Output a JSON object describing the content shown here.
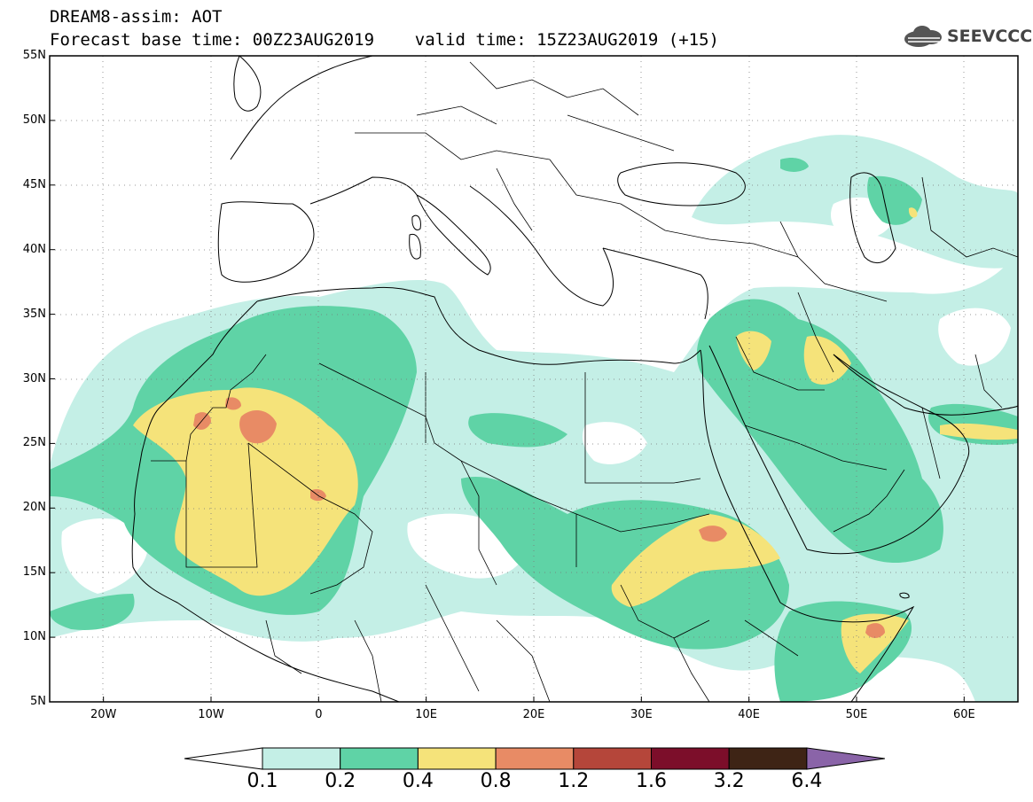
{
  "header": {
    "title_line1": "DREAM8-assim: AOT",
    "title_line2": "Forecast base time: 00Z23AUG2019    valid time: 15Z23AUG2019 (+15)"
  },
  "logo": {
    "text": "SEEVCCC",
    "icon": "cloud-logo-icon"
  },
  "map": {
    "lat_labels": [
      "55N",
      "50N",
      "45N",
      "40N",
      "35N",
      "30N",
      "25N",
      "20N",
      "15N",
      "10N",
      "5N"
    ],
    "lat_values": [
      55,
      50,
      45,
      40,
      35,
      30,
      25,
      20,
      15,
      10,
      5
    ],
    "lon_labels": [
      "20W",
      "10W",
      "0",
      "10E",
      "20E",
      "30E",
      "40E",
      "50E",
      "60E"
    ],
    "lon_values": [
      -20,
      -10,
      0,
      10,
      20,
      30,
      40,
      50,
      60
    ],
    "lon_range": [
      -25,
      65
    ],
    "lat_range": [
      5,
      55
    ],
    "grid": "dotted"
  },
  "legend": {
    "labels": [
      "0.1",
      "0.2",
      "0.4",
      "0.8",
      "1.2",
      "1.6",
      "3.2",
      "6.4"
    ],
    "colors": [
      "#ffffff",
      "#c4efe6",
      "#5fd3a6",
      "#f5e37a",
      "#e88b65",
      "#b5463a",
      "#7c0e2a",
      "#3e2415",
      "#8a64a8"
    ]
  }
}
